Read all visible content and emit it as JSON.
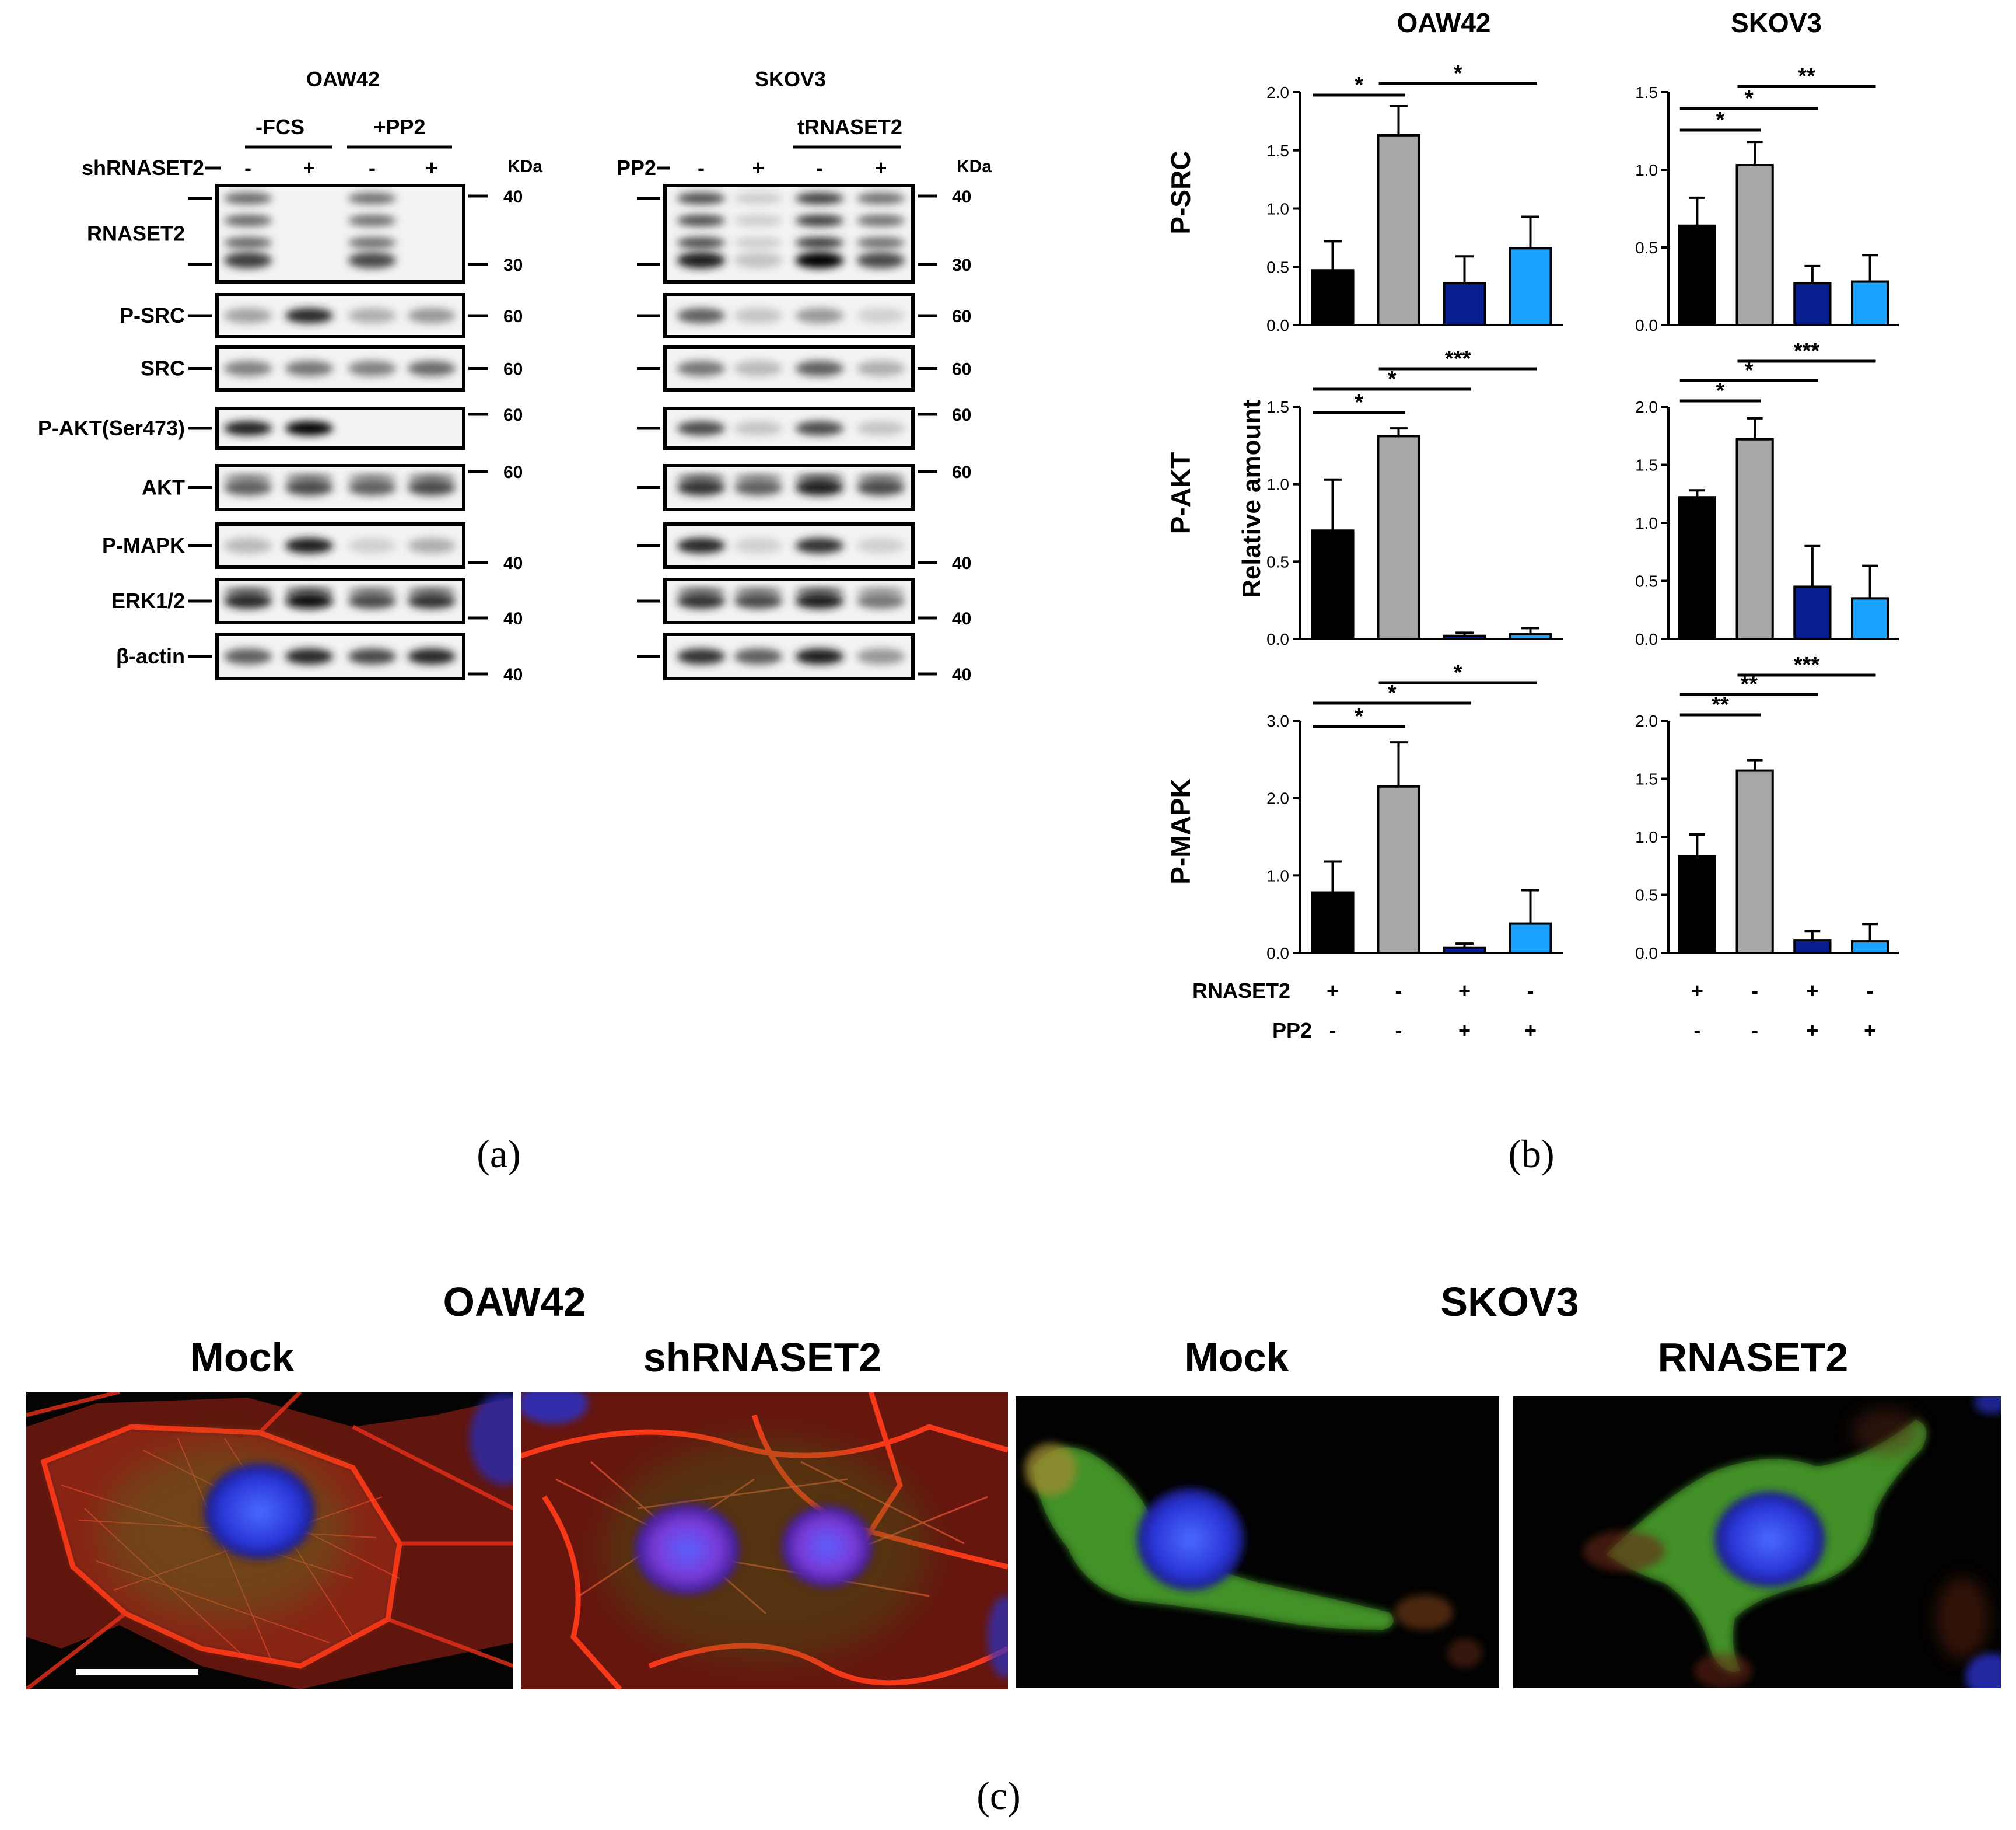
{
  "panel_a": {
    "caption": "(a)",
    "left_blot": {
      "cell_line": "OAW42",
      "group1": "-FCS",
      "group2": "+PP2",
      "row_label": "shRNASET2",
      "lane_signs": [
        "-",
        "+",
        "-",
        "+"
      ],
      "kda_label": "KDa",
      "rows": [
        {
          "label": "RNASET2",
          "markers": [
            "40",
            "30"
          ]
        },
        {
          "label": "P-SRC",
          "markers": [
            "60"
          ]
        },
        {
          "label": "SRC",
          "markers": [
            "60"
          ]
        },
        {
          "label": "P-AKT(Ser473)",
          "markers": [
            "60"
          ]
        },
        {
          "label": "AKT",
          "markers": [
            "60"
          ]
        },
        {
          "label": "P-MAPK",
          "markers": [
            "40"
          ]
        },
        {
          "label": "ERK1/2",
          "markers": [
            "40"
          ]
        },
        {
          "label": "β-actin",
          "markers": [
            "40"
          ]
        }
      ]
    },
    "right_blot": {
      "cell_line": "SKOV3",
      "group": "tRNASET2",
      "row_label": "PP2",
      "lane_signs": [
        "-",
        "+",
        "-",
        "+"
      ],
      "kda_label": "KDa",
      "markers": [
        [
          "40",
          "30"
        ],
        [
          "60"
        ],
        [
          "60"
        ],
        [
          "60"
        ],
        [
          "60"
        ],
        [
          "40"
        ],
        [
          "40"
        ],
        [
          "40"
        ]
      ]
    }
  },
  "panel_b": {
    "caption": "(b)",
    "col_titles": [
      "OAW42",
      "SKOV3"
    ],
    "row_titles": [
      "P-SRC",
      "P-AKT",
      "P-MAPK"
    ],
    "y_label": "Relative amount",
    "condition_labels": [
      "RNASET2",
      "PP2"
    ],
    "condition_rnaset2": [
      "+",
      "-",
      "+",
      "-"
    ],
    "condition_pp2": [
      "-",
      "-",
      "+",
      "+"
    ],
    "colors": [
      "#000000",
      "#a8a8a8",
      "#0a1f8f",
      "#1aa3ff"
    ]
  },
  "chart_data": [
    {
      "type": "bar",
      "row": "P-SRC",
      "column": "OAW42",
      "values": [
        0.47,
        1.63,
        0.36,
        0.66
      ],
      "errors": [
        0.25,
        0.25,
        0.23,
        0.27
      ],
      "ylim": [
        0,
        2.0
      ],
      "yticks": [
        "0.0",
        "0.5",
        "1.0",
        "1.5",
        "2.0"
      ],
      "annotations": [
        {
          "from": 0,
          "to": 1,
          "label": "*"
        },
        {
          "from": 1,
          "to": 3,
          "label": "*"
        }
      ]
    },
    {
      "type": "bar",
      "row": "P-SRC",
      "column": "SKOV3",
      "values": [
        0.64,
        1.03,
        0.27,
        0.28
      ],
      "errors": [
        0.18,
        0.15,
        0.11,
        0.17
      ],
      "ylim": [
        0,
        1.5
      ],
      "yticks": [
        "0.0",
        "0.5",
        "1.0",
        "1.5"
      ],
      "annotations": [
        {
          "from": 0,
          "to": 1,
          "label": "*"
        },
        {
          "from": 0,
          "to": 2,
          "label": "*"
        },
        {
          "from": 1,
          "to": 3,
          "label": "**"
        }
      ]
    },
    {
      "type": "bar",
      "row": "P-AKT",
      "column": "OAW42",
      "values": [
        0.7,
        1.31,
        0.02,
        0.03
      ],
      "errors": [
        0.33,
        0.05,
        0.02,
        0.04
      ],
      "ylim": [
        0,
        1.5
      ],
      "yticks": [
        "0.0",
        "0.5",
        "1.0",
        "1.5"
      ],
      "annotations": [
        {
          "from": 0,
          "to": 1,
          "label": "*"
        },
        {
          "from": 0,
          "to": 2,
          "label": "*"
        },
        {
          "from": 1,
          "to": 3,
          "label": "***"
        }
      ]
    },
    {
      "type": "bar",
      "row": "P-AKT",
      "column": "SKOV3",
      "values": [
        1.22,
        1.72,
        0.45,
        0.35
      ],
      "errors": [
        0.06,
        0.18,
        0.35,
        0.28
      ],
      "ylim": [
        0,
        2.0
      ],
      "yticks": [
        "0.0",
        "0.5",
        "1.0",
        "1.5",
        "2.0"
      ],
      "annotations": [
        {
          "from": 0,
          "to": 1,
          "label": "*"
        },
        {
          "from": 0,
          "to": 2,
          "label": "*"
        },
        {
          "from": 1,
          "to": 3,
          "label": "***"
        }
      ]
    },
    {
      "type": "bar",
      "row": "P-MAPK",
      "column": "OAW42",
      "values": [
        0.78,
        2.15,
        0.07,
        0.38
      ],
      "errors": [
        0.4,
        0.57,
        0.05,
        0.43
      ],
      "ylim": [
        0,
        3.0
      ],
      "yticks": [
        "0.0",
        "1.0",
        "2.0",
        "3.0"
      ],
      "annotations": [
        {
          "from": 0,
          "to": 1,
          "label": "*"
        },
        {
          "from": 0,
          "to": 2,
          "label": "*"
        },
        {
          "from": 1,
          "to": 3,
          "label": "*"
        }
      ]
    },
    {
      "type": "bar",
      "row": "P-MAPK",
      "column": "SKOV3",
      "values": [
        0.83,
        1.57,
        0.11,
        0.1
      ],
      "errors": [
        0.19,
        0.09,
        0.08,
        0.15
      ],
      "ylim": [
        0,
        2.0
      ],
      "yticks": [
        "0.0",
        "0.5",
        "1.0",
        "1.5",
        "2.0"
      ],
      "annotations": [
        {
          "from": 0,
          "to": 1,
          "label": "**"
        },
        {
          "from": 0,
          "to": 2,
          "label": "**"
        },
        {
          "from": 1,
          "to": 3,
          "label": "***"
        }
      ]
    }
  ],
  "panel_c": {
    "caption": "(c)",
    "group_titles": [
      "OAW42",
      "SKOV3"
    ],
    "image_titles": [
      "Mock",
      "shRNASET2",
      "Mock",
      "RNASET2"
    ]
  }
}
